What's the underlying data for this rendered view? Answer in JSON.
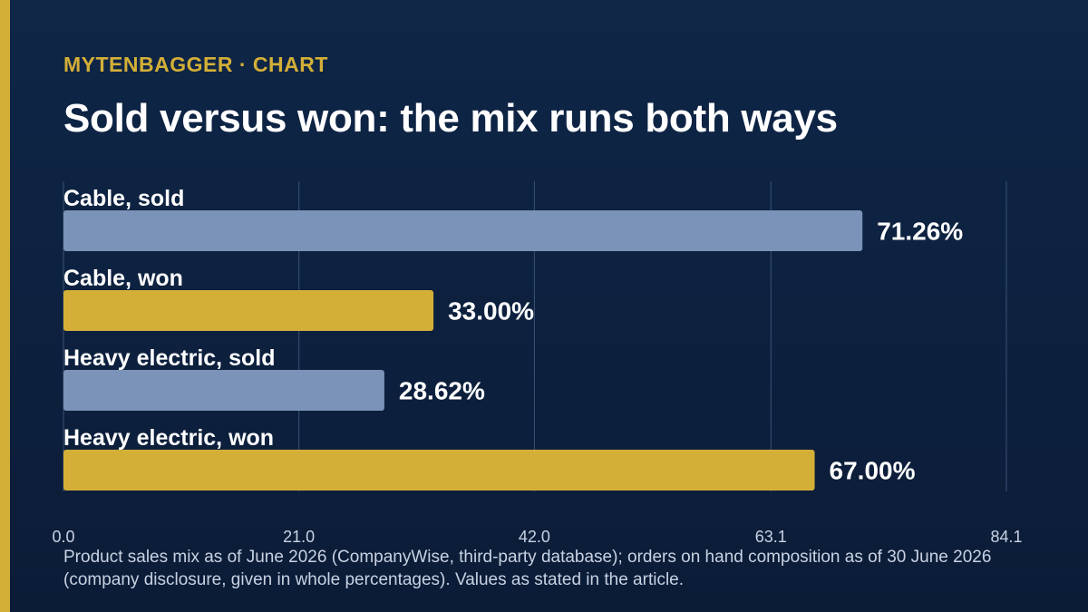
{
  "header": {
    "eyebrow": "MYTENBAGGER · CHART",
    "title": "Sold versus won: the mix runs both ways"
  },
  "footnote": "Product sales mix as of June 2026 (CompanyWise, third-party database); orders on hand composition as of 30 June 2026 (company disclosure, given in whole percentages). Values as stated in the article.",
  "colors": {
    "sold": "#7b93b8",
    "won": "#d4af37",
    "accent": "#d4af37",
    "background": "#0f2647"
  },
  "chart_data": {
    "type": "bar",
    "orientation": "horizontal",
    "categories": [
      "Cable, sold",
      "Cable, won",
      "Heavy electric, sold",
      "Heavy electric, won"
    ],
    "values": [
      71.26,
      33.0,
      28.62,
      67.0
    ],
    "value_labels": [
      "71.26%",
      "33.00%",
      "28.62%",
      "67.00%"
    ],
    "bar_groups": [
      "sold",
      "won",
      "sold",
      "won"
    ],
    "xlim": [
      0,
      84.1
    ],
    "xticks": [
      0.0,
      21.0,
      42.0,
      63.1,
      84.1
    ],
    "xtick_labels": [
      "0.0",
      "21.0",
      "42.0",
      "63.1",
      "84.1"
    ],
    "grid": true
  }
}
